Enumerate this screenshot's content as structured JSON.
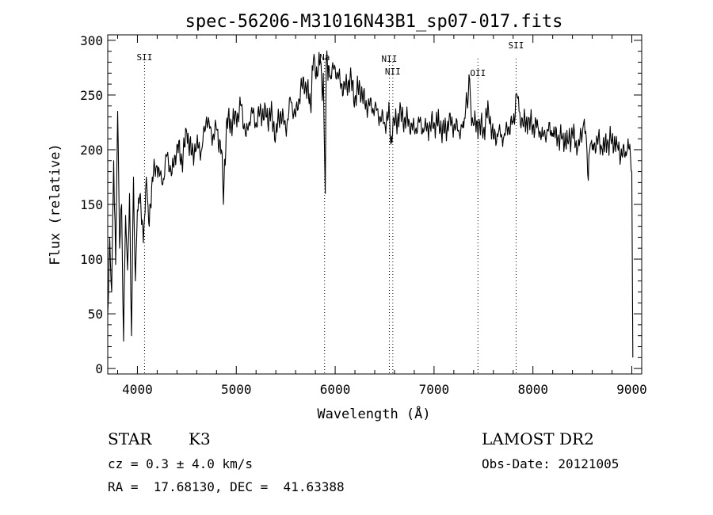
{
  "chart_data": {
    "type": "line",
    "title": "spec-56206-M31016N43B1_sp07-017.fits",
    "xlabel": "Wavelength (Å)",
    "ylabel": "Flux (relative)",
    "xlim": [
      3700,
      9100
    ],
    "ylim": [
      -5,
      305
    ],
    "xticks": [
      4000,
      5000,
      6000,
      7000,
      8000,
      9000
    ],
    "yticks": [
      0,
      50,
      100,
      150,
      200,
      250,
      300
    ],
    "grid": false,
    "line_color": "#000000",
    "series": [
      {
        "name": "",
        "x": [
          3700,
          3720,
          3740,
          3760,
          3780,
          3800,
          3820,
          3840,
          3860,
          3880,
          3900,
          3920,
          3940,
          3960,
          3980,
          4000,
          4030,
          4060,
          4090,
          4120,
          4150,
          4200,
          4250,
          4300,
          4350,
          4400,
          4450,
          4500,
          4550,
          4600,
          4650,
          4700,
          4750,
          4800,
          4850,
          4870,
          4900,
          4950,
          5000,
          5050,
          5100,
          5150,
          5200,
          5250,
          5300,
          5350,
          5400,
          5450,
          5500,
          5550,
          5600,
          5650,
          5700,
          5750,
          5780,
          5800,
          5830,
          5850,
          5870,
          5880,
          5893,
          5900,
          5910,
          5950,
          6000,
          6050,
          6100,
          6150,
          6200,
          6250,
          6300,
          6350,
          6400,
          6450,
          6500,
          6550,
          6563,
          6580,
          6600,
          6650,
          6700,
          6750,
          6800,
          6850,
          6900,
          6950,
          7000,
          7050,
          7100,
          7150,
          7200,
          7250,
          7300,
          7320,
          7340,
          7360,
          7380,
          7400,
          7450,
          7500,
          7550,
          7600,
          7650,
          7700,
          7750,
          7800,
          7820,
          7840,
          7860,
          7880,
          7900,
          7950,
          8000,
          8050,
          8100,
          8150,
          8200,
          8250,
          8300,
          8350,
          8400,
          8450,
          8500,
          8520,
          8540,
          8560,
          8580,
          8600,
          8650,
          8700,
          8750,
          8800,
          8850,
          8900,
          8950,
          8980,
          9000,
          9010
        ],
        "y": [
          50,
          120,
          70,
          190,
          95,
          235,
          110,
          150,
          25,
          140,
          90,
          160,
          30,
          175,
          80,
          145,
          160,
          115,
          175,
          130,
          175,
          185,
          168,
          195,
          178,
          205,
          190,
          215,
          195,
          205,
          200,
          230,
          212,
          218,
          200,
          150,
          225,
          225,
          228,
          240,
          212,
          235,
          225,
          235,
          230,
          232,
          215,
          235,
          218,
          245,
          230,
          255,
          262,
          240,
          282,
          268,
          275,
          282,
          245,
          270,
          195,
          160,
          280,
          268,
          275,
          262,
          255,
          265,
          248,
          258,
          242,
          240,
          238,
          230,
          225,
          232,
          205,
          215,
          222,
          232,
          228,
          225,
          218,
          225,
          218,
          220,
          225,
          225,
          215,
          225,
          222,
          218,
          220,
          238,
          238,
          265,
          222,
          222,
          222,
          218,
          238,
          210,
          215,
          210,
          220,
          225,
          230,
          250,
          235,
          220,
          222,
          225,
          222,
          222,
          212,
          218,
          215,
          210,
          212,
          208,
          215,
          200,
          215,
          228,
          210,
          172,
          205,
          200,
          210,
          200,
          205,
          210,
          205,
          195,
          198,
          205,
          180,
          10
        ]
      }
    ],
    "lines": [
      {
        "label": "SII",
        "x": 4072
      },
      {
        "label": "Na",
        "x": 5893
      },
      {
        "label": "NII",
        "x": 6548
      },
      {
        "label": "NII",
        "x": 6583
      },
      {
        "label": "OII",
        "x": 7444
      },
      {
        "label": "SII",
        "x": 7830
      }
    ]
  },
  "info": {
    "class_label": "STAR",
    "subclass": "K3",
    "survey": "LAMOST DR2",
    "cz_line": "cz = 0.3 ± 4.0 km/s",
    "obs_date_line": "Obs-Date: 20121005",
    "coords_line": "RA =  17.68130, DEC =  41.63388"
  }
}
